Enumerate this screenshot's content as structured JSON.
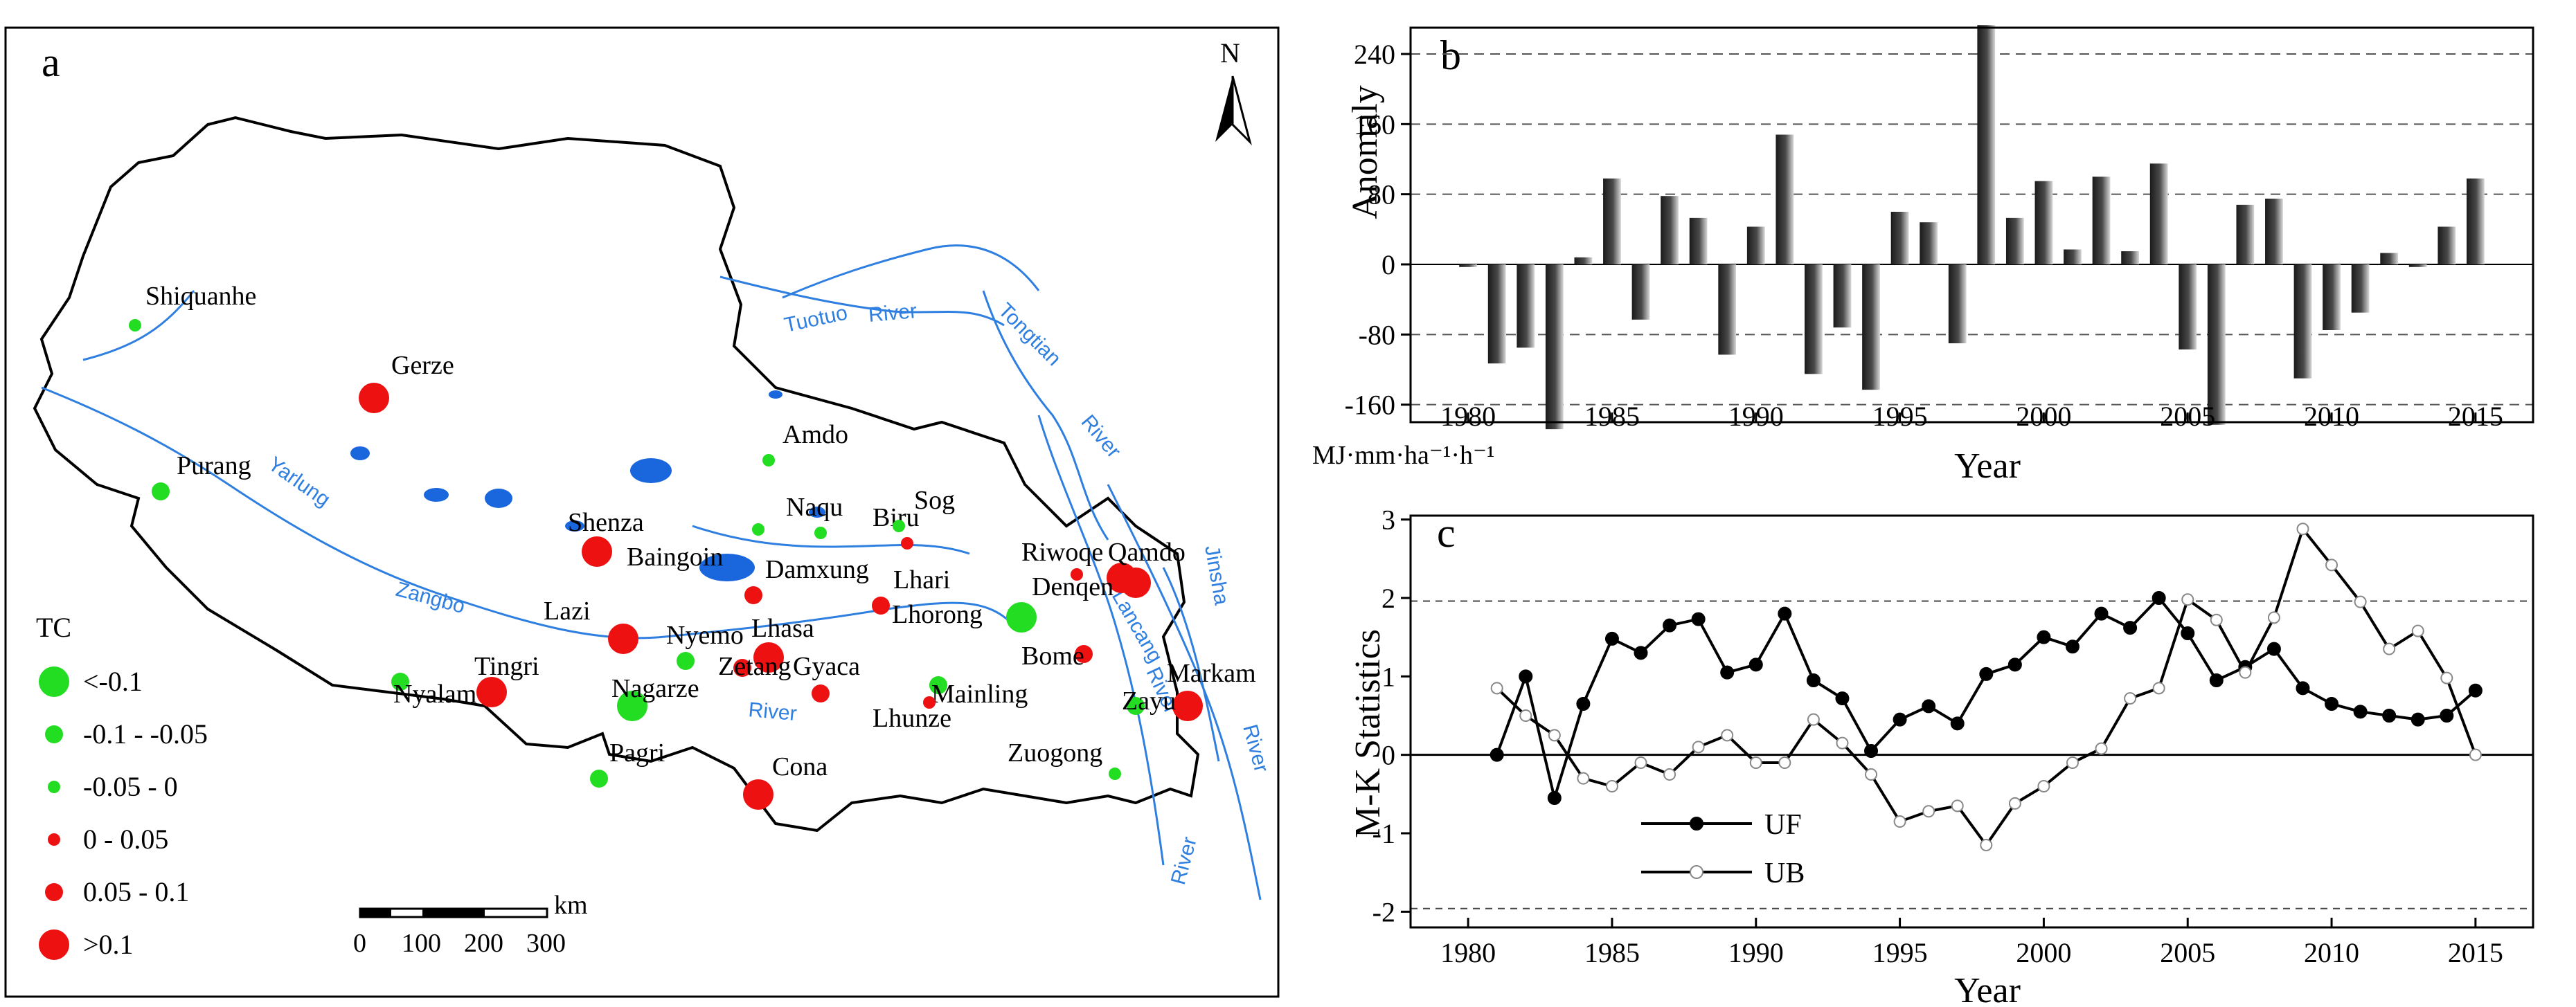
{
  "map": {
    "panel_label": "a",
    "north_label": "N",
    "legend": {
      "title": "TC",
      "items": [
        {
          "label": "<-0.1",
          "color": "#22dd22",
          "size": "large"
        },
        {
          "label": "-0.1 - -0.05",
          "color": "#22dd22",
          "size": "medium"
        },
        {
          "label": "-0.05 - 0",
          "color": "#22dd22",
          "size": "small"
        },
        {
          "label": "0 - 0.05",
          "color": "#ee1111",
          "size": "small"
        },
        {
          "label": "0.05 - 0.1",
          "color": "#ee1111",
          "size": "medium"
        },
        {
          "label": ">0.1",
          "color": "#ee1111",
          "size": "large"
        }
      ]
    },
    "scalebar": {
      "unit": "km",
      "ticks": [
        "0",
        "100",
        "200",
        "300"
      ]
    },
    "stations": [
      {
        "name": "Shiquanhe",
        "cls": 2
      },
      {
        "name": "Gerze",
        "cls": 5
      },
      {
        "name": "Purang",
        "cls": 1
      },
      {
        "name": "Amdo",
        "cls": 2
      },
      {
        "name": "Naqu",
        "cls": 2
      },
      {
        "name": "Biru",
        "cls": 3
      },
      {
        "name": "Sog",
        "cls": 2
      },
      {
        "name": "Shenza",
        "cls": 5
      },
      {
        "name": "Baingoin",
        "cls": 2
      },
      {
        "name": "Damxung",
        "cls": 4
      },
      {
        "name": "Lhari",
        "cls": 4
      },
      {
        "name": "Riwoqe",
        "cls": 3
      },
      {
        "name": "Qamdo",
        "cls": 5
      },
      {
        "name": "Denqen",
        "cls": 5
      },
      {
        "name": "Lazi",
        "cls": 5
      },
      {
        "name": "Nyemo",
        "cls": 1
      },
      {
        "name": "Lhasa",
        "cls": 5
      },
      {
        "name": "Lhorong",
        "cls": 0
      },
      {
        "name": "Nyalam",
        "cls": 1
      },
      {
        "name": "Tingri",
        "cls": 5
      },
      {
        "name": "Zetang",
        "cls": 4
      },
      {
        "name": "Nagarze",
        "cls": 0
      },
      {
        "name": "Gyaca",
        "cls": 4
      },
      {
        "name": "Bome",
        "cls": 4
      },
      {
        "name": "Mainling",
        "cls": 1
      },
      {
        "name": "Markam",
        "cls": 5
      },
      {
        "name": "Lhunze",
        "cls": 3
      },
      {
        "name": "Zuogong",
        "cls": 2
      },
      {
        "name": "Zayu",
        "cls": 1
      },
      {
        "name": "Pagri",
        "cls": 1
      },
      {
        "name": "Cona",
        "cls": 5
      }
    ],
    "rivers": [
      "Yarlung",
      "Zangbo",
      "River",
      "Tuotuo",
      "River",
      "Tongtian",
      "River",
      "Lancang",
      "River",
      "Jinsha",
      "River",
      "River"
    ]
  },
  "chart_data": [
    {
      "panel": "b",
      "type": "bar",
      "xlabel": "Year",
      "ylabel": "Anomaly",
      "unit_label": "MJ·mm·ha⁻¹·h⁻¹",
      "xlim": [
        1978,
        2017
      ],
      "ylim": [
        -180,
        270
      ],
      "xticks": [
        1980,
        1985,
        1990,
        1995,
        2000,
        2005,
        2010,
        2015
      ],
      "yticks": [
        -160,
        -80,
        0,
        80,
        160,
        240
      ],
      "grid_y": true,
      "x": [
        1980,
        1981,
        1982,
        1983,
        1984,
        1985,
        1986,
        1987,
        1988,
        1989,
        1990,
        1991,
        1992,
        1993,
        1994,
        1995,
        1996,
        1997,
        1998,
        1999,
        2000,
        2001,
        2002,
        2003,
        2004,
        2005,
        2006,
        2007,
        2008,
        2009,
        2010,
        2011,
        2012,
        2013,
        2014,
        2015
      ],
      "values": [
        -3,
        -113,
        -95,
        -188,
        8,
        98,
        -63,
        78,
        53,
        -103,
        43,
        148,
        -125,
        -72,
        -143,
        60,
        48,
        -90,
        273,
        53,
        95,
        17,
        100,
        15,
        115,
        -97,
        -183,
        68,
        75,
        -130,
        -75,
        -55,
        13,
        -3,
        43,
        98
      ]
    },
    {
      "panel": "c",
      "type": "line",
      "xlabel": "Year",
      "ylabel": "M-K Statistics",
      "xlim": [
        1978,
        2017
      ],
      "ylim": [
        -2.2,
        3.05
      ],
      "xticks": [
        1980,
        1985,
        1990,
        1995,
        2000,
        2005,
        2010,
        2015
      ],
      "yticks": [
        -2,
        -1,
        0,
        1,
        2,
        3
      ],
      "ref_lines": [
        1.96,
        -1.96
      ],
      "legend": [
        "UF",
        "UB"
      ],
      "x": [
        1981,
        1982,
        1983,
        1984,
        1985,
        1986,
        1987,
        1988,
        1989,
        1990,
        1991,
        1992,
        1993,
        1994,
        1995,
        1996,
        1997,
        1998,
        1999,
        2000,
        2001,
        2002,
        2003,
        2004,
        2005,
        2006,
        2007,
        2008,
        2009,
        2010,
        2011,
        2012,
        2013,
        2014,
        2015
      ],
      "series": [
        {
          "name": "UF",
          "marker": "filled",
          "values": [
            0,
            1.0,
            -0.55,
            0.65,
            1.48,
            1.3,
            1.65,
            1.73,
            1.05,
            1.15,
            1.8,
            0.95,
            0.72,
            0.05,
            0.45,
            0.62,
            0.4,
            1.03,
            1.15,
            1.5,
            1.38,
            1.8,
            1.62,
            2.0,
            1.55,
            0.95,
            1.12,
            1.35,
            0.85,
            0.65,
            0.55,
            0.5,
            0.45,
            0.5,
            0.82
          ]
        },
        {
          "name": "UB",
          "marker": "open",
          "values": [
            0.85,
            0.5,
            0.25,
            -0.3,
            -0.4,
            -0.1,
            -0.25,
            0.1,
            0.25,
            -0.1,
            -0.1,
            0.45,
            0.15,
            -0.25,
            -0.85,
            -0.72,
            -0.65,
            -1.15,
            -0.62,
            -0.4,
            -0.1,
            0.08,
            0.72,
            0.85,
            1.98,
            1.72,
            1.05,
            1.75,
            2.88,
            2.42,
            1.95,
            1.35,
            1.58,
            0.98,
            0
          ]
        }
      ]
    }
  ]
}
